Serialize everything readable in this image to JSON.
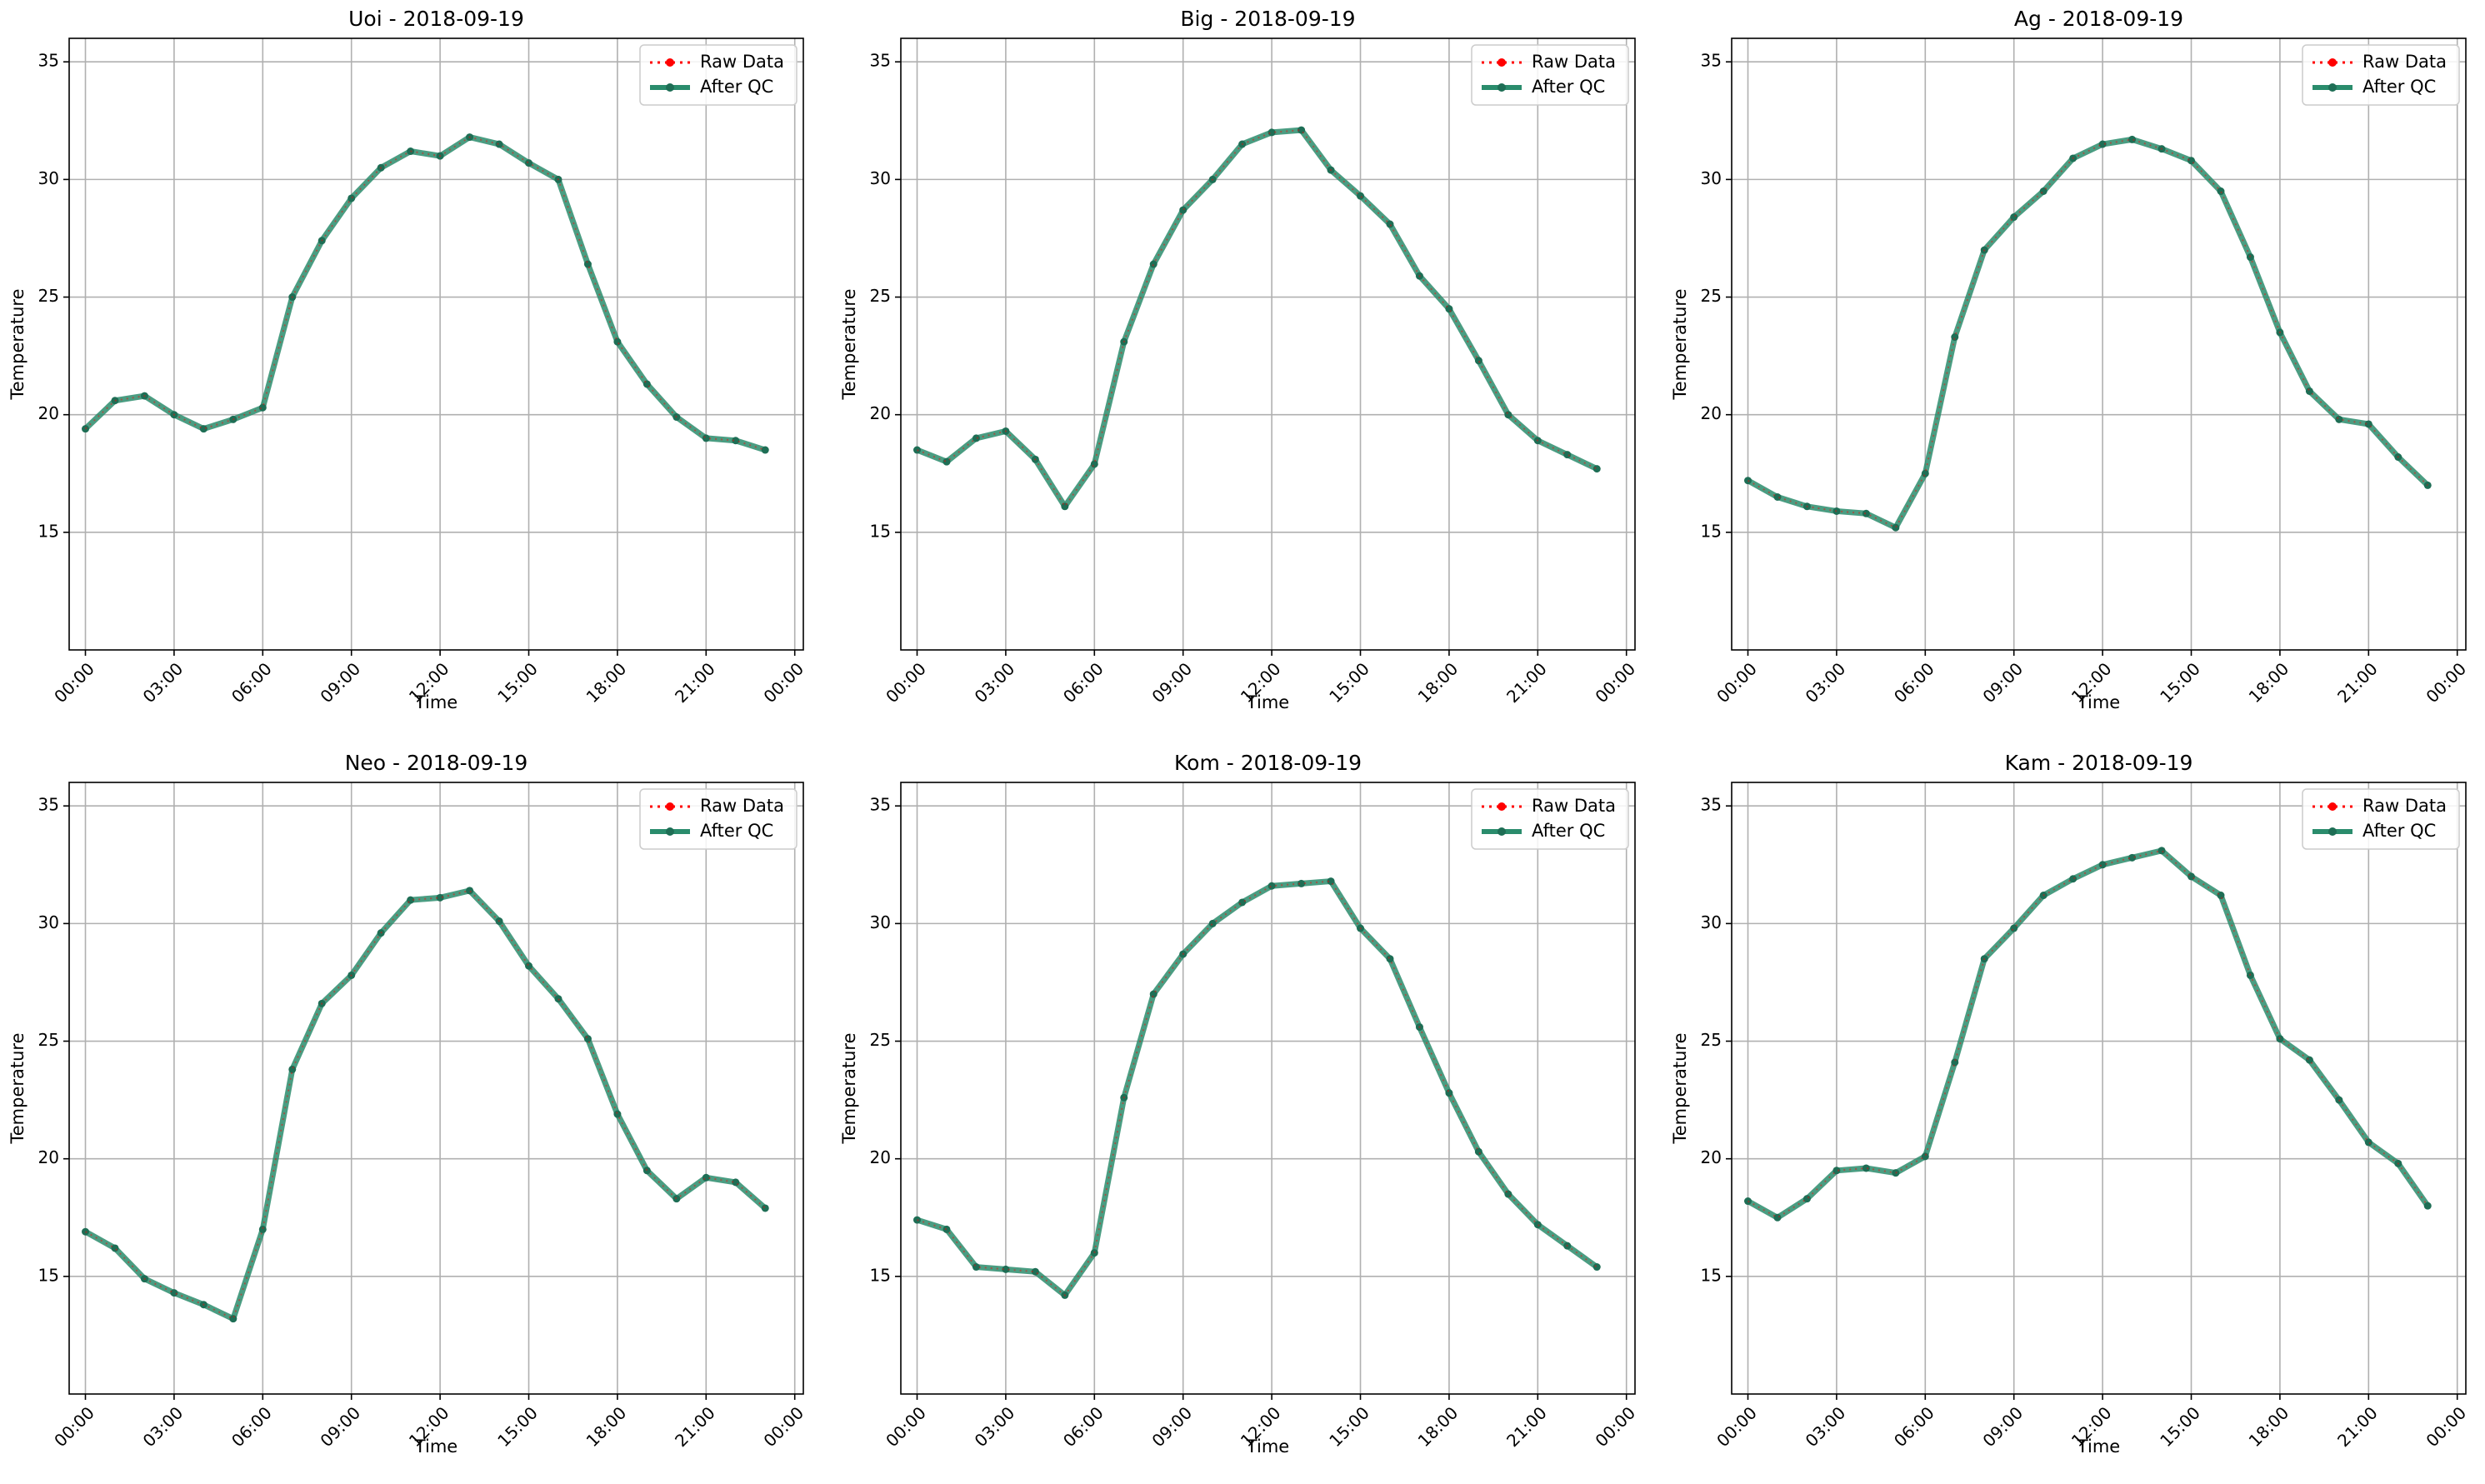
{
  "chart_data": [
    {
      "type": "line",
      "title": "Uoi - 2018-09-19",
      "xlabel": "Time",
      "ylabel": "Temperature",
      "xlim": [
        "2018-09-19 00:00",
        "2018-09-20 00:00"
      ],
      "ylim": [
        10,
        36
      ],
      "xticks": [
        "00:00",
        "03:00",
        "06:00",
        "09:00",
        "12:00",
        "15:00",
        "18:00",
        "21:00",
        "00:00"
      ],
      "yticks": [
        15,
        20,
        25,
        30,
        35
      ],
      "grid": true,
      "legend": {
        "position": "top-right",
        "entries": [
          "Raw Data",
          "After QC"
        ]
      },
      "x": [
        "00:00",
        "01:00",
        "02:00",
        "03:00",
        "04:00",
        "05:00",
        "06:00",
        "07:00",
        "08:00",
        "09:00",
        "10:00",
        "11:00",
        "12:00",
        "13:00",
        "14:00",
        "15:00",
        "16:00",
        "17:00",
        "18:00",
        "19:00",
        "20:00",
        "21:00",
        "22:00",
        "23:00"
      ],
      "series": [
        {
          "name": "Raw Data",
          "values": [
            19.4,
            20.6,
            20.8,
            20.0,
            19.4,
            19.8,
            20.3,
            25.0,
            27.4,
            29.2,
            30.5,
            31.2,
            31.0,
            31.8,
            31.5,
            30.7,
            30.0,
            26.4,
            23.1,
            21.3,
            19.9,
            19.0,
            18.9,
            18.5
          ]
        },
        {
          "name": "After QC",
          "values": [
            19.4,
            20.6,
            20.8,
            20.0,
            19.4,
            19.8,
            20.3,
            25.0,
            27.4,
            29.2,
            30.5,
            31.2,
            31.0,
            31.8,
            31.5,
            30.7,
            30.0,
            26.4,
            23.1,
            21.3,
            19.9,
            19.0,
            18.9,
            18.5
          ]
        }
      ]
    },
    {
      "type": "line",
      "title": "Big - 2018-09-19",
      "xlabel": "Time",
      "ylabel": "Temperature",
      "xlim": [
        "2018-09-19 00:00",
        "2018-09-20 00:00"
      ],
      "ylim": [
        10,
        36
      ],
      "xticks": [
        "00:00",
        "03:00",
        "06:00",
        "09:00",
        "12:00",
        "15:00",
        "18:00",
        "21:00",
        "00:00"
      ],
      "yticks": [
        15,
        20,
        25,
        30,
        35
      ],
      "grid": true,
      "legend": {
        "position": "top-right",
        "entries": [
          "Raw Data",
          "After QC"
        ]
      },
      "x": [
        "00:00",
        "01:00",
        "02:00",
        "03:00",
        "04:00",
        "05:00",
        "06:00",
        "07:00",
        "08:00",
        "09:00",
        "10:00",
        "11:00",
        "12:00",
        "13:00",
        "14:00",
        "15:00",
        "16:00",
        "17:00",
        "18:00",
        "19:00",
        "20:00",
        "21:00",
        "22:00",
        "23:00"
      ],
      "series": [
        {
          "name": "Raw Data",
          "values": [
            18.5,
            18.0,
            19.0,
            19.3,
            18.1,
            16.1,
            17.9,
            23.1,
            26.4,
            28.7,
            30.0,
            31.5,
            32.0,
            32.1,
            30.4,
            29.3,
            28.1,
            25.9,
            24.5,
            22.3,
            20.0,
            18.9,
            18.3,
            17.7
          ]
        },
        {
          "name": "After QC",
          "values": [
            18.5,
            18.0,
            19.0,
            19.3,
            18.1,
            16.1,
            17.9,
            23.1,
            26.4,
            28.7,
            30.0,
            31.5,
            32.0,
            32.1,
            30.4,
            29.3,
            28.1,
            25.9,
            24.5,
            22.3,
            20.0,
            18.9,
            18.3,
            17.7
          ]
        }
      ]
    },
    {
      "type": "line",
      "title": "Ag - 2018-09-19",
      "xlabel": "Time",
      "ylabel": "Temperature",
      "xlim": [
        "2018-09-19 00:00",
        "2018-09-20 00:00"
      ],
      "ylim": [
        10,
        36
      ],
      "xticks": [
        "00:00",
        "03:00",
        "06:00",
        "09:00",
        "12:00",
        "15:00",
        "18:00",
        "21:00",
        "00:00"
      ],
      "yticks": [
        15,
        20,
        25,
        30,
        35
      ],
      "grid": true,
      "legend": {
        "position": "top-right",
        "entries": [
          "Raw Data",
          "After QC"
        ]
      },
      "x": [
        "00:00",
        "01:00",
        "02:00",
        "03:00",
        "04:00",
        "05:00",
        "06:00",
        "07:00",
        "08:00",
        "09:00",
        "10:00",
        "11:00",
        "12:00",
        "13:00",
        "14:00",
        "15:00",
        "16:00",
        "17:00",
        "18:00",
        "19:00",
        "20:00",
        "21:00",
        "22:00",
        "23:00"
      ],
      "series": [
        {
          "name": "Raw Data",
          "values": [
            17.2,
            16.5,
            16.1,
            15.9,
            15.8,
            15.2,
            17.5,
            23.3,
            27.0,
            28.4,
            29.5,
            30.9,
            31.5,
            31.7,
            31.3,
            30.8,
            29.5,
            26.7,
            23.5,
            21.0,
            19.8,
            19.6,
            18.2,
            17.0
          ]
        },
        {
          "name": "After QC",
          "values": [
            17.2,
            16.5,
            16.1,
            15.9,
            15.8,
            15.2,
            17.5,
            23.3,
            27.0,
            28.4,
            29.5,
            30.9,
            31.5,
            31.7,
            31.3,
            30.8,
            29.5,
            26.7,
            23.5,
            21.0,
            19.8,
            19.6,
            18.2,
            17.0
          ]
        }
      ]
    },
    {
      "type": "line",
      "title": "Neo - 2018-09-19",
      "xlabel": "Time",
      "ylabel": "Temperature",
      "xlim": [
        "2018-09-19 00:00",
        "2018-09-20 00:00"
      ],
      "ylim": [
        10,
        36
      ],
      "xticks": [
        "00:00",
        "03:00",
        "06:00",
        "09:00",
        "12:00",
        "15:00",
        "18:00",
        "21:00",
        "00:00"
      ],
      "yticks": [
        15,
        20,
        25,
        30,
        35
      ],
      "grid": true,
      "legend": {
        "position": "top-right",
        "entries": [
          "Raw Data",
          "After QC"
        ]
      },
      "x": [
        "00:00",
        "01:00",
        "02:00",
        "03:00",
        "04:00",
        "05:00",
        "06:00",
        "07:00",
        "08:00",
        "09:00",
        "10:00",
        "11:00",
        "12:00",
        "13:00",
        "14:00",
        "15:00",
        "16:00",
        "17:00",
        "18:00",
        "19:00",
        "20:00",
        "21:00",
        "22:00",
        "23:00"
      ],
      "series": [
        {
          "name": "Raw Data",
          "values": [
            16.9,
            16.2,
            14.9,
            14.3,
            13.8,
            13.2,
            17.0,
            23.8,
            26.6,
            27.8,
            29.6,
            31.0,
            31.1,
            31.4,
            30.1,
            28.2,
            26.8,
            25.1,
            21.9,
            19.5,
            18.3,
            19.2,
            19.0,
            17.9
          ]
        },
        {
          "name": "After QC",
          "values": [
            16.9,
            16.2,
            14.9,
            14.3,
            13.8,
            13.2,
            17.0,
            23.8,
            26.6,
            27.8,
            29.6,
            31.0,
            31.1,
            31.4,
            30.1,
            28.2,
            26.8,
            25.1,
            21.9,
            19.5,
            18.3,
            19.2,
            19.0,
            17.9
          ]
        }
      ]
    },
    {
      "type": "line",
      "title": "Kom - 2018-09-19",
      "xlabel": "Time",
      "ylabel": "Temperature",
      "xlim": [
        "2018-09-19 00:00",
        "2018-09-20 00:00"
      ],
      "ylim": [
        10,
        36
      ],
      "xticks": [
        "00:00",
        "03:00",
        "06:00",
        "09:00",
        "12:00",
        "15:00",
        "18:00",
        "21:00",
        "00:00"
      ],
      "yticks": [
        15,
        20,
        25,
        30,
        35
      ],
      "grid": true,
      "legend": {
        "position": "top-right",
        "entries": [
          "Raw Data",
          "After QC"
        ]
      },
      "x": [
        "00:00",
        "01:00",
        "02:00",
        "03:00",
        "04:00",
        "05:00",
        "06:00",
        "07:00",
        "08:00",
        "09:00",
        "10:00",
        "11:00",
        "12:00",
        "13:00",
        "14:00",
        "15:00",
        "16:00",
        "17:00",
        "18:00",
        "19:00",
        "20:00",
        "21:00",
        "22:00",
        "23:00"
      ],
      "series": [
        {
          "name": "Raw Data",
          "values": [
            17.4,
            17.0,
            15.4,
            15.3,
            15.2,
            14.2,
            16.0,
            22.6,
            27.0,
            28.7,
            30.0,
            30.9,
            31.6,
            31.7,
            31.8,
            29.8,
            28.5,
            25.6,
            22.8,
            20.3,
            18.5,
            17.2,
            16.3,
            15.4
          ]
        },
        {
          "name": "After QC",
          "values": [
            17.4,
            17.0,
            15.4,
            15.3,
            15.2,
            14.2,
            16.0,
            22.6,
            27.0,
            28.7,
            30.0,
            30.9,
            31.6,
            31.7,
            31.8,
            29.8,
            28.5,
            25.6,
            22.8,
            20.3,
            18.5,
            17.2,
            16.3,
            15.4
          ]
        }
      ]
    },
    {
      "type": "line",
      "title": "Kam - 2018-09-19",
      "xlabel": "Time",
      "ylabel": "Temperature",
      "xlim": [
        "2018-09-19 00:00",
        "2018-09-20 00:00"
      ],
      "ylim": [
        10,
        36
      ],
      "xticks": [
        "00:00",
        "03:00",
        "06:00",
        "09:00",
        "12:00",
        "15:00",
        "18:00",
        "21:00",
        "00:00"
      ],
      "yticks": [
        15,
        20,
        25,
        30,
        35
      ],
      "grid": true,
      "legend": {
        "position": "top-right",
        "entries": [
          "Raw Data",
          "After QC"
        ]
      },
      "x": [
        "00:00",
        "01:00",
        "02:00",
        "03:00",
        "04:00",
        "05:00",
        "06:00",
        "07:00",
        "08:00",
        "09:00",
        "10:00",
        "11:00",
        "12:00",
        "13:00",
        "14:00",
        "15:00",
        "16:00",
        "17:00",
        "18:00",
        "19:00",
        "20:00",
        "21:00",
        "22:00",
        "23:00"
      ],
      "series": [
        {
          "name": "Raw Data",
          "values": [
            18.2,
            17.5,
            18.3,
            19.5,
            19.6,
            19.4,
            20.1,
            24.1,
            28.5,
            29.8,
            31.2,
            31.9,
            32.5,
            32.8,
            33.1,
            32.0,
            31.2,
            27.8,
            25.1,
            24.2,
            22.5,
            20.7,
            19.8,
            18.0
          ]
        },
        {
          "name": "After QC",
          "values": [
            18.2,
            17.5,
            18.3,
            19.5,
            19.6,
            19.4,
            20.1,
            24.1,
            28.5,
            29.8,
            31.2,
            31.9,
            32.5,
            32.8,
            33.1,
            32.0,
            31.2,
            27.8,
            25.1,
            24.2,
            22.5,
            20.7,
            19.8,
            18.0
          ]
        }
      ]
    }
  ],
  "style": {
    "raw_color": "#ff0000",
    "qc_color": "#2a8c6c",
    "qc_marker_color": "#1e6e55",
    "grid_color": "#b0b0b0"
  }
}
